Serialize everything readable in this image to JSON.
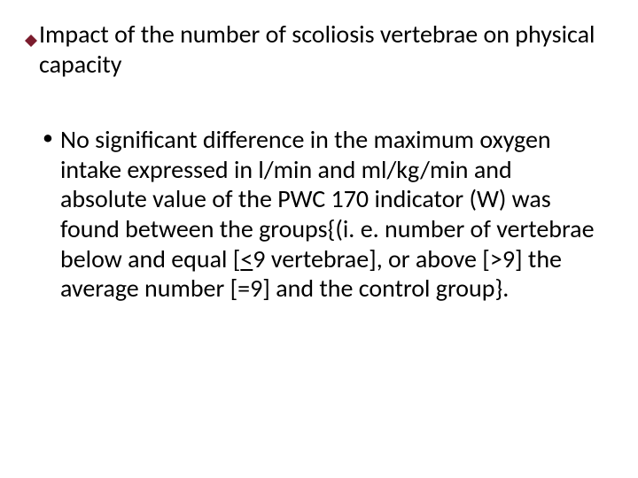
{
  "heading": {
    "bullet_color": "#7b1c2d",
    "text": "Impact of the number of scoliosis vertebrae on physical capacity"
  },
  "body": {
    "item_prefix": "No significant difference in the maximum oxygen intake expressed in l/min and ml/kg/min and absolute value of the PWC 170 indicator (W) was found between the groups{(i. e. number of vertebrae below and equal [",
    "lt_sym": "<",
    "after_lt": "9 vertebrae], or above [>9] the average number [=9] and the control group}."
  },
  "style": {
    "background_color": "#ffffff",
    "text_color": "#000000",
    "heading_fontsize": 28,
    "body_fontsize": 28,
    "font_family": "Calibri"
  }
}
